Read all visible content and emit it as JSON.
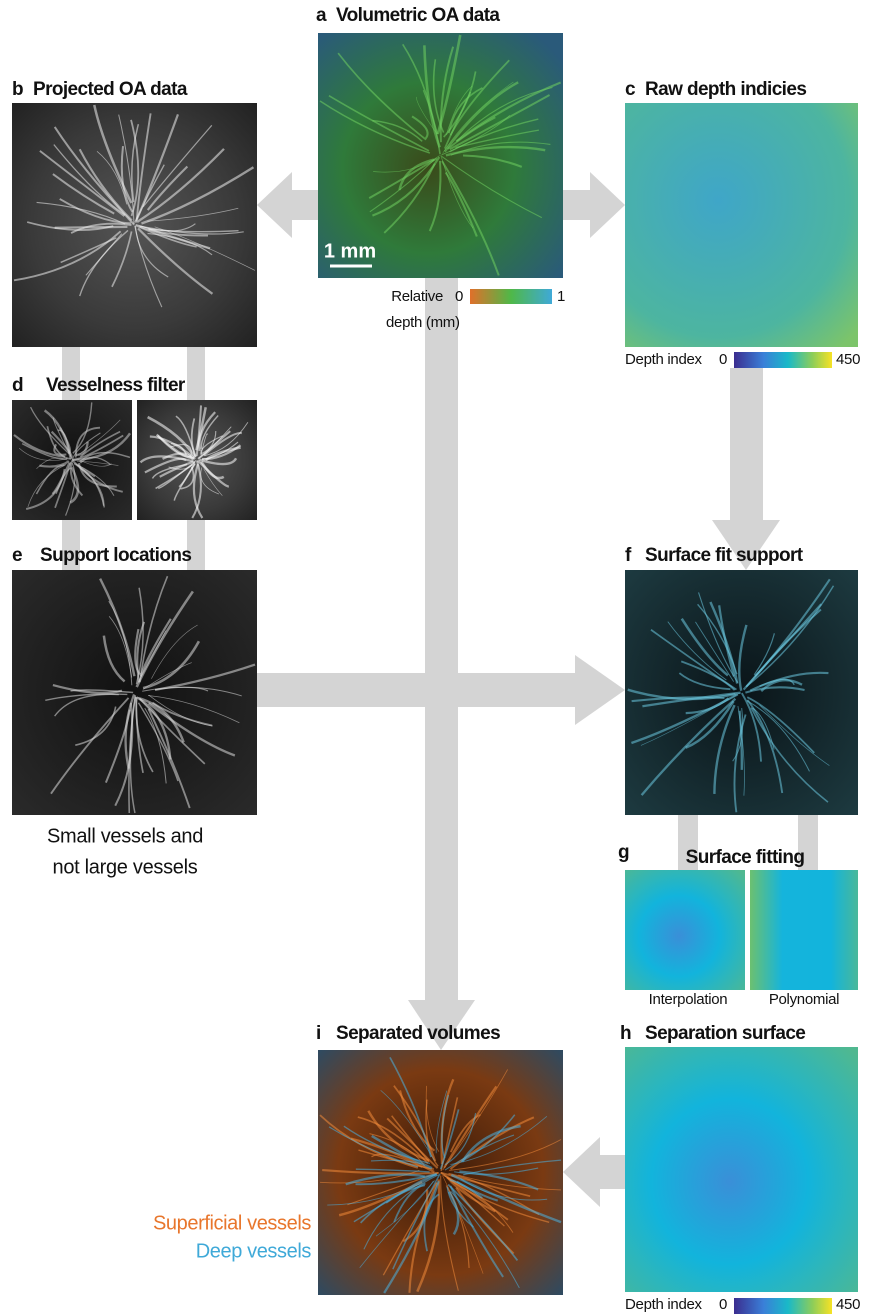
{
  "panels": {
    "a": {
      "letter": "a",
      "title": "Volumetric OA data",
      "scale_bar": "1 mm",
      "colorbar": {
        "label_top": "Relative",
        "label_bottom": "depth (mm)",
        "min": 0,
        "max": 1
      }
    },
    "b": {
      "letter": "b",
      "title": "Projected OA data"
    },
    "c": {
      "letter": "c",
      "title": "Raw depth indicies",
      "colorbar": {
        "label": "Depth index",
        "min": 0,
        "max": 450
      }
    },
    "d": {
      "letter": "d",
      "title": "Vesselness filter"
    },
    "e": {
      "letter": "e",
      "title": "Support locations",
      "caption": [
        "Small vessels and",
        "not large vessels"
      ]
    },
    "f": {
      "letter": "f",
      "title": "Surface fit support"
    },
    "g": {
      "letter": "g",
      "title": "Surface fitting",
      "sublabels": [
        "Interpolation",
        "Polynomial"
      ]
    },
    "h": {
      "letter": "h",
      "title": "Separation surface",
      "colorbar": {
        "label": "Depth index",
        "min": 0,
        "max": 450
      }
    },
    "i": {
      "letter": "i",
      "title": "Separated volumes",
      "legend": [
        {
          "label": "Superficial vessels",
          "color": "#e8762c"
        },
        {
          "label": "Deep vessels",
          "color": "#3fa9d8"
        }
      ]
    }
  }
}
